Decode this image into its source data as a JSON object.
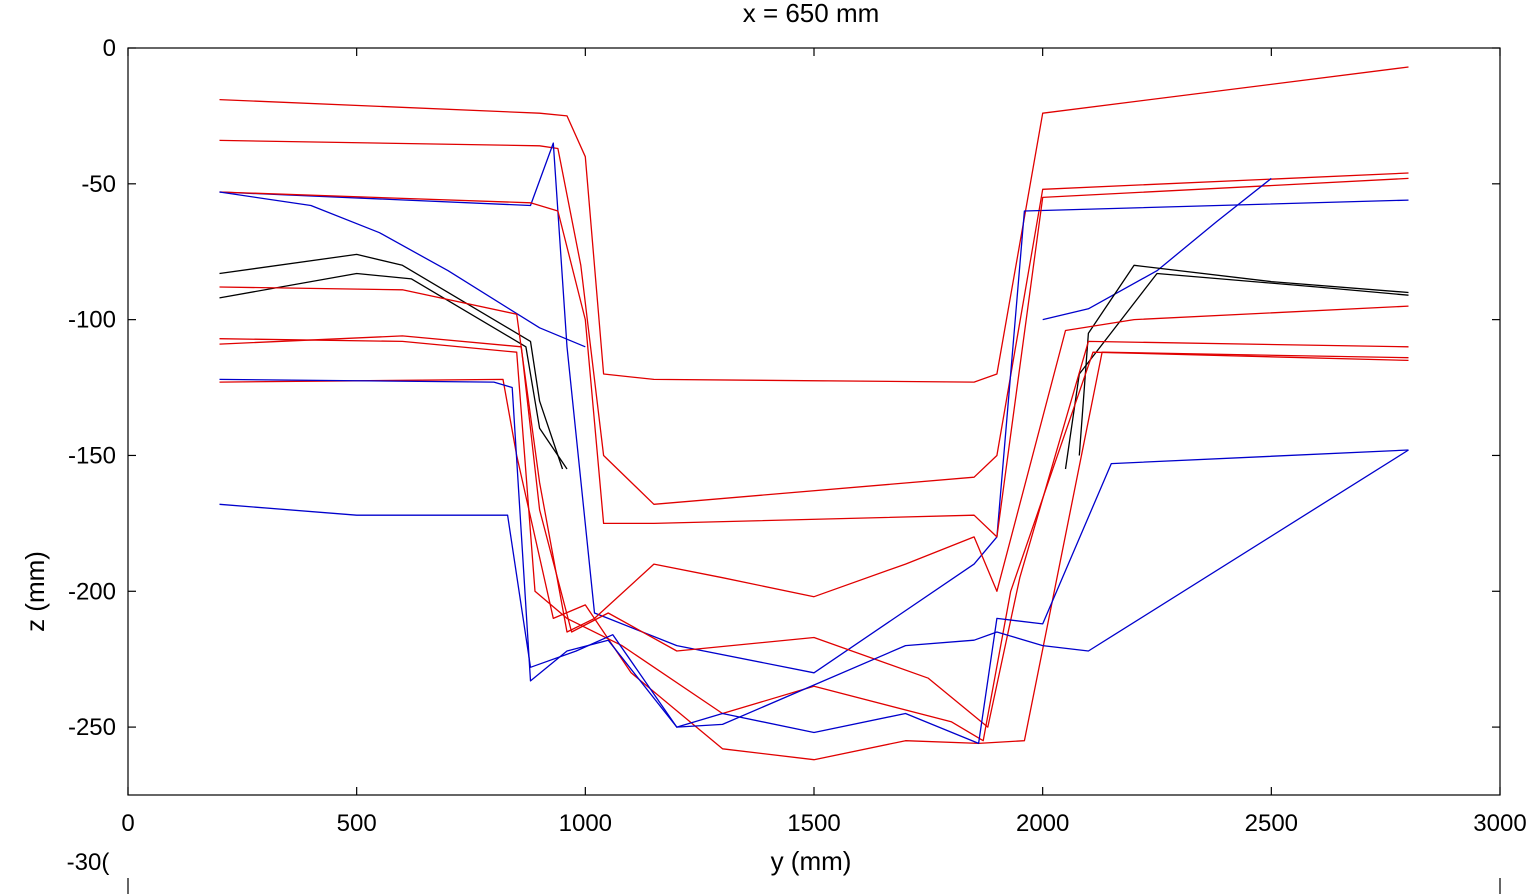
{
  "chart_data": {
    "type": "line",
    "title": "x = 650 mm",
    "xlabel": "y (mm)",
    "ylabel": "z (mm)",
    "xlim": [
      0,
      3000
    ],
    "ylim": [
      -275,
      0
    ],
    "xticks": [
      0,
      500,
      1000,
      1500,
      2000,
      2500,
      3000
    ],
    "yticks": [
      0,
      -50,
      -100,
      -150,
      -200,
      -250
    ],
    "xtick_labels": [
      "0",
      "500",
      "1000",
      "1500",
      "2000",
      "2500",
      "3000"
    ],
    "ytick_labels": [
      "0",
      "-50",
      "-100",
      "-150",
      "-200",
      "-250"
    ],
    "clipped_tick_label": "-30(",
    "grid": false,
    "series": [
      {
        "color": "#e00000",
        "x": [
          200,
          900,
          960,
          1000,
          1040,
          1150,
          1850,
          1900,
          2000,
          2800
        ],
        "y": [
          -19,
          -24,
          -25,
          -40,
          -120,
          -122,
          -123,
          -120,
          -24,
          -7
        ]
      },
      {
        "color": "#e00000",
        "x": [
          200,
          900,
          940,
          990,
          1040,
          1150,
          1850,
          1900,
          2000,
          2800
        ],
        "y": [
          -34,
          -36,
          -37,
          -80,
          -150,
          -168,
          -158,
          -150,
          -52,
          -46
        ]
      },
      {
        "color": "#0000cc",
        "x": [
          200,
          880,
          930,
          960,
          1020,
          1050,
          1200,
          1500,
          1850,
          1900,
          1960,
          2800
        ],
        "y": [
          -53,
          -58,
          -35,
          -110,
          -208,
          -210,
          -220,
          -230,
          -190,
          -180,
          -60,
          -56
        ]
      },
      {
        "color": "#e00000",
        "x": [
          200,
          880,
          940,
          1000,
          1040,
          1150,
          1850,
          1900,
          2000,
          2800
        ],
        "y": [
          -53,
          -57,
          -60,
          -100,
          -175,
          -175,
          -172,
          -180,
          -55,
          -48
        ]
      },
      {
        "color": "#0000cc",
        "x": [
          200,
          400,
          550,
          700,
          900,
          1000
        ],
        "y": [
          -53,
          -58,
          -68,
          -82,
          -103,
          -110
        ]
      },
      {
        "color": "#0000cc",
        "x": [
          2000,
          2100,
          2250,
          2380,
          2500
        ],
        "y": [
          -100,
          -96,
          -82,
          -64,
          -48
        ]
      },
      {
        "color": "#000000",
        "x": [
          200,
          500,
          600,
          880,
          900,
          950
        ],
        "y": [
          -83,
          -76,
          -80,
          -108,
          -130,
          -155
        ]
      },
      {
        "color": "#000000",
        "x": [
          200,
          500,
          620,
          870,
          900,
          960
        ],
        "y": [
          -92,
          -83,
          -85,
          -110,
          -140,
          -155
        ]
      },
      {
        "color": "#000000",
        "x": [
          2080,
          2100,
          2200,
          2500,
          2800
        ],
        "y": [
          -150,
          -105,
          -80,
          -86,
          -90
        ]
      },
      {
        "color": "#000000",
        "x": [
          2050,
          2080,
          2250,
          2600,
          2800
        ],
        "y": [
          -155,
          -120,
          -83,
          -88,
          -91
        ]
      },
      {
        "color": "#e00000",
        "x": [
          200,
          600,
          850,
          900,
          960,
          1020,
          1150,
          1300,
          1500,
          1700,
          1850,
          1900,
          2050,
          2200,
          2800
        ],
        "y": [
          -88,
          -89,
          -98,
          -160,
          -215,
          -210,
          -190,
          -195,
          -202,
          -190,
          -180,
          -200,
          -104,
          -100,
          -95
        ]
      },
      {
        "color": "#e00000",
        "x": [
          200,
          600,
          860,
          900,
          970,
          1050,
          1200,
          1500,
          1750,
          1880,
          1950,
          2100,
          2800
        ],
        "y": [
          -109,
          -106,
          -110,
          -170,
          -215,
          -208,
          -222,
          -217,
          -232,
          -250,
          -195,
          -108,
          -110
        ]
      },
      {
        "color": "#e00000",
        "x": [
          200,
          600,
          850,
          890,
          960,
          1080,
          1300,
          1500,
          1800,
          1870,
          1930,
          2110,
          2800
        ],
        "y": [
          -107,
          -108,
          -112,
          -200,
          -210,
          -220,
          -245,
          -235,
          -248,
          -255,
          -200,
          -112,
          -115
        ]
      },
      {
        "color": "#e00000",
        "x": [
          200,
          820,
          850,
          930,
          1000,
          1100,
          1300,
          1500,
          1700,
          1860,
          1960,
          2130,
          2800
        ],
        "y": [
          -123,
          -122,
          -150,
          -210,
          -205,
          -230,
          -258,
          -262,
          -255,
          -256,
          -255,
          -112,
          -114
        ]
      },
      {
        "color": "#0000cc",
        "x": [
          200,
          800,
          840,
          880,
          960,
          1050,
          1200,
          1300,
          1500,
          1700,
          1860,
          1900,
          2000,
          2150,
          2800
        ],
        "y": [
          -122,
          -123,
          -125,
          -233,
          -222,
          -218,
          -250,
          -245,
          -252,
          -245,
          -256,
          -210,
          -212,
          -153,
          -148
        ]
      },
      {
        "color": "#0000cc",
        "x": [
          200,
          500,
          800,
          830,
          880,
          980,
          1060,
          1200,
          1300,
          1700,
          1850,
          1900,
          2000,
          2100,
          2800
        ],
        "y": [
          -168,
          -172,
          -172,
          -172,
          -228,
          -222,
          -216,
          -250,
          -249,
          -220,
          -218,
          -215,
          -220,
          -222,
          -148
        ]
      }
    ]
  }
}
